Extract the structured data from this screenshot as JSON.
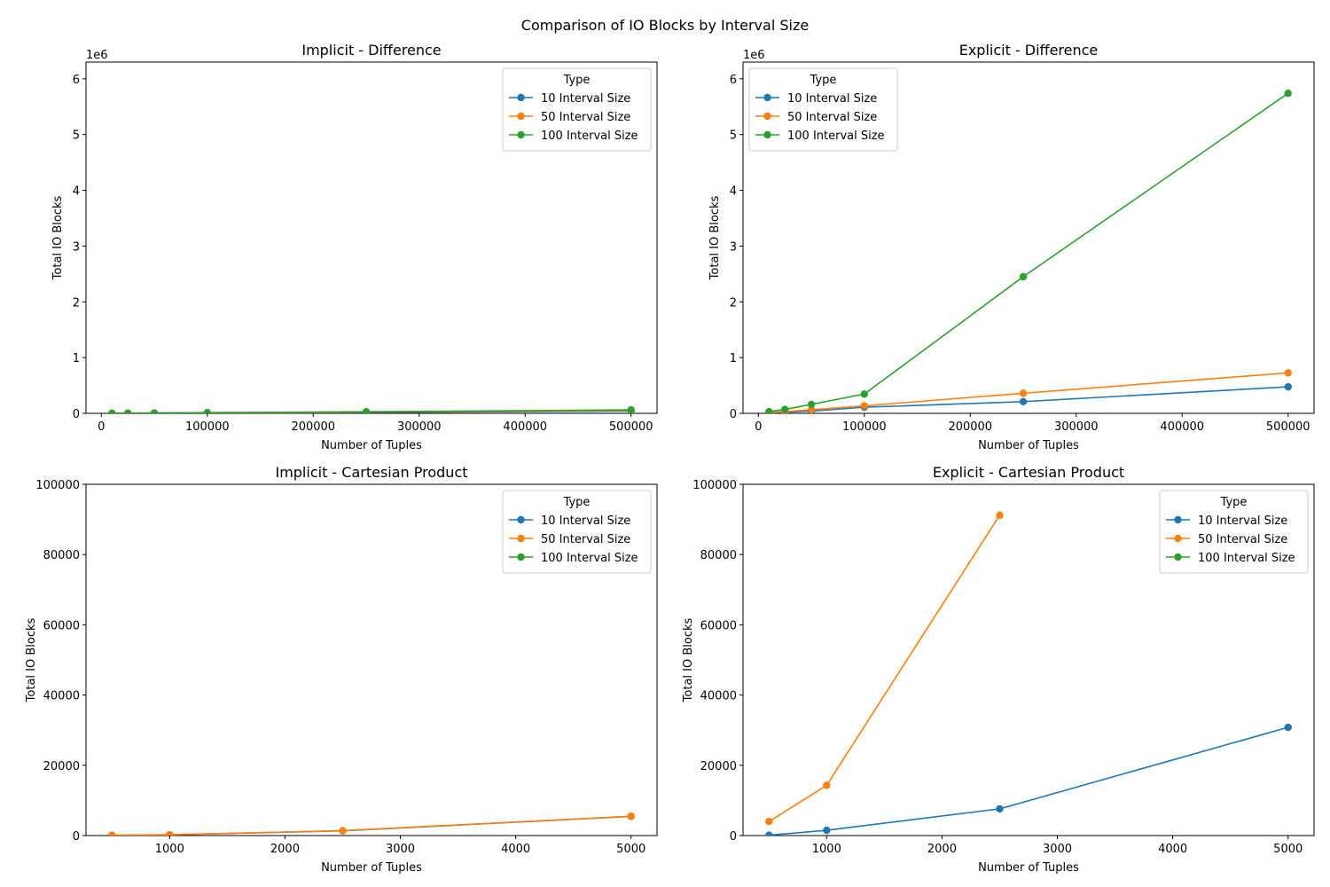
{
  "figure": {
    "suptitle": "Comparison of IO Blocks by Interval Size"
  },
  "colors": {
    "10 Interval Size": "#1f77b4",
    "50 Interval Size": "#ff7f0e",
    "100 Interval Size": "#2ca02c"
  },
  "chart_data": [
    {
      "type": "line",
      "title": "Implicit - Difference",
      "xlabel": "Number of Tuples",
      "ylabel": "Total IO Blocks",
      "ylim": [
        0,
        6300000
      ],
      "xlim": [
        -14500,
        524500
      ],
      "y_offset_label": "1e6",
      "xticks": [
        0,
        100000,
        200000,
        300000,
        400000,
        500000
      ],
      "xtick_labels": [
        "0",
        "100000",
        "200000",
        "300000",
        "400000",
        "500000"
      ],
      "yticks": [
        0,
        1000000,
        2000000,
        3000000,
        4000000,
        5000000,
        6000000
      ],
      "ytick_labels": [
        "0",
        "1",
        "2",
        "3",
        "4",
        "5",
        "6"
      ],
      "legend": {
        "title": "Type",
        "placement": "upper-right"
      },
      "series": [
        {
          "name": "10 Interval Size",
          "x": [
            10000,
            25000,
            50000,
            100000,
            250000,
            500000
          ],
          "y": [
            800,
            2000,
            3500,
            6000,
            17000,
            40000
          ]
        },
        {
          "name": "50 Interval Size",
          "x": [
            10000,
            25000,
            50000,
            100000,
            250000,
            500000
          ],
          "y": [
            1000,
            2600,
            5000,
            9000,
            24000,
            52000
          ]
        },
        {
          "name": "100 Interval Size",
          "x": [
            10000,
            25000,
            50000,
            100000,
            250000,
            500000
          ],
          "y": [
            1300,
            3000,
            6500,
            12000,
            28000,
            62000
          ]
        }
      ]
    },
    {
      "type": "line",
      "title": "Explicit - Difference",
      "xlabel": "Number of Tuples",
      "ylabel": "Total IO Blocks",
      "ylim": [
        0,
        6300000
      ],
      "xlim": [
        -14500,
        524500
      ],
      "y_offset_label": "1e6",
      "xticks": [
        0,
        100000,
        200000,
        300000,
        400000,
        500000
      ],
      "xtick_labels": [
        "0",
        "100000",
        "200000",
        "300000",
        "400000",
        "500000"
      ],
      "yticks": [
        0,
        1000000,
        2000000,
        3000000,
        4000000,
        5000000,
        6000000
      ],
      "ytick_labels": [
        "0",
        "1",
        "2",
        "3",
        "4",
        "5",
        "6"
      ],
      "legend": {
        "title": "Type",
        "placement": "upper-left"
      },
      "series": [
        {
          "name": "10 Interval Size",
          "x": [
            10000,
            25000,
            50000,
            100000,
            250000,
            500000
          ],
          "y": [
            10000,
            20000,
            40000,
            110000,
            210000,
            475000
          ]
        },
        {
          "name": "50 Interval Size",
          "x": [
            10000,
            25000,
            50000,
            100000,
            250000,
            500000
          ],
          "y": [
            15000,
            30000,
            65000,
            135000,
            360000,
            725000
          ]
        },
        {
          "name": "100 Interval Size",
          "x": [
            10000,
            25000,
            50000,
            100000,
            250000,
            500000
          ],
          "y": [
            30000,
            70000,
            160000,
            345000,
            2450000,
            5740000
          ]
        }
      ]
    },
    {
      "type": "line",
      "title": "Implicit - Cartesian Product",
      "xlabel": "Number of Tuples",
      "ylabel": "Total IO Blocks",
      "ylim": [
        0,
        100000
      ],
      "xlim": [
        275,
        5225
      ],
      "xticks": [
        1000,
        2000,
        3000,
        4000,
        5000
      ],
      "xtick_labels": [
        "1000",
        "2000",
        "3000",
        "4000",
        "5000"
      ],
      "yticks": [
        0,
        20000,
        40000,
        60000,
        80000,
        100000
      ],
      "ytick_labels": [
        "0",
        "20000",
        "40000",
        "60000",
        "80000",
        "100000"
      ],
      "legend": {
        "title": "Type",
        "placement": "upper-right"
      },
      "series": [
        {
          "name": "10 Interval Size",
          "x": [
            500,
            1000,
            2500,
            5000
          ],
          "y": [
            60,
            220,
            1350,
            5450
          ]
        },
        {
          "name": "50 Interval Size",
          "x": [
            500,
            1000,
            2500,
            5000
          ],
          "y": [
            65,
            230,
            1400,
            5500
          ]
        }
      ]
    },
    {
      "type": "line",
      "title": "Explicit - Cartesian Product",
      "xlabel": "Number of Tuples",
      "ylabel": "Total IO Blocks",
      "ylim": [
        0,
        100000
      ],
      "xlim": [
        275,
        5225
      ],
      "xticks": [
        1000,
        2000,
        3000,
        4000,
        5000
      ],
      "xtick_labels": [
        "1000",
        "2000",
        "3000",
        "4000",
        "5000"
      ],
      "yticks": [
        0,
        20000,
        40000,
        60000,
        80000,
        100000
      ],
      "ytick_labels": [
        "0",
        "20000",
        "40000",
        "60000",
        "80000",
        "100000"
      ],
      "legend": {
        "title": "Type",
        "placement": "upper-right"
      },
      "series": [
        {
          "name": "10 Interval Size",
          "x": [
            500,
            1000,
            2500,
            5000
          ],
          "y": [
            100,
            1500,
            7600,
            30800
          ]
        },
        {
          "name": "50 Interval Size",
          "x": [
            500,
            1000,
            2500
          ],
          "y": [
            4000,
            14300,
            91200
          ]
        }
      ]
    }
  ],
  "legend_entries": [
    "10 Interval Size",
    "50 Interval Size",
    "100 Interval Size"
  ]
}
